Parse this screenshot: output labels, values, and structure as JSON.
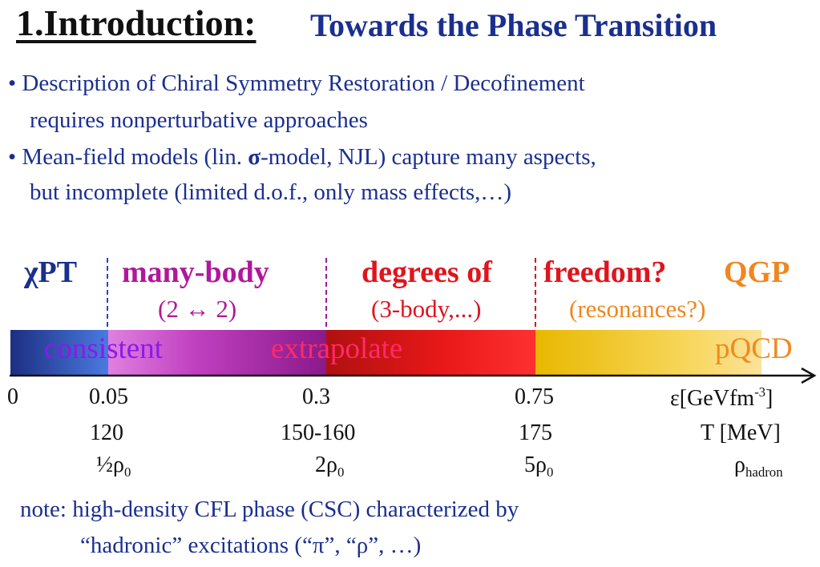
{
  "title": {
    "number": "1.Introduction:",
    "rest": "Towards the Phase Transition"
  },
  "bullets": [
    {
      "line1": "• Description of Chiral Symmetry Restoration / Decofinement",
      "line2": "requires nonperturbative approaches"
    },
    {
      "line1_a": "• Mean-field models (lin. ",
      "line1_sigma": "σ",
      "line1_b": "-model, NJL) capture many aspects,",
      "line2": "but incomplete (limited d.o.f., only mass effects,…)"
    }
  ],
  "regions": {
    "chipt": "χPT",
    "many_body": "many-body",
    "many_body_sub": "(2 ↔ 2)",
    "degrees_of": "degrees of",
    "degrees_sub": "(3-body,...)",
    "freedom": "freedom?",
    "freedom_sub": "(resonances?)",
    "qgp": "QGP"
  },
  "bar_labels": {
    "consistent": "consistent",
    "extrapolate": "extrapolate",
    "pqcd": "pQCD"
  },
  "energy_axis": {
    "ticks": [
      "0",
      "0.05",
      "0.3",
      "0.75"
    ],
    "unit_prefix": "ε[GeVfm",
    "unit_exp": "-3",
    "unit_suffix": "]"
  },
  "temperature": {
    "values": [
      "120",
      "150-160",
      "175"
    ],
    "unit": "T [MeV]"
  },
  "density": {
    "half_coef": "½",
    "two_coef": "2",
    "five_coef": "5",
    "rho": "ρ",
    "sub0": "0",
    "unit_rho": "ρ",
    "unit_sub": "hadron"
  },
  "note": {
    "line1": "note: high-density CFL phase (CSC) characterized by",
    "line2": "“hadronic” excitations (“π”, “ρ”, …)"
  },
  "colors": {
    "navy": "#1a2f8f",
    "magenta": "#b0179c",
    "red": "#e0141e",
    "orange": "#f0861f"
  }
}
